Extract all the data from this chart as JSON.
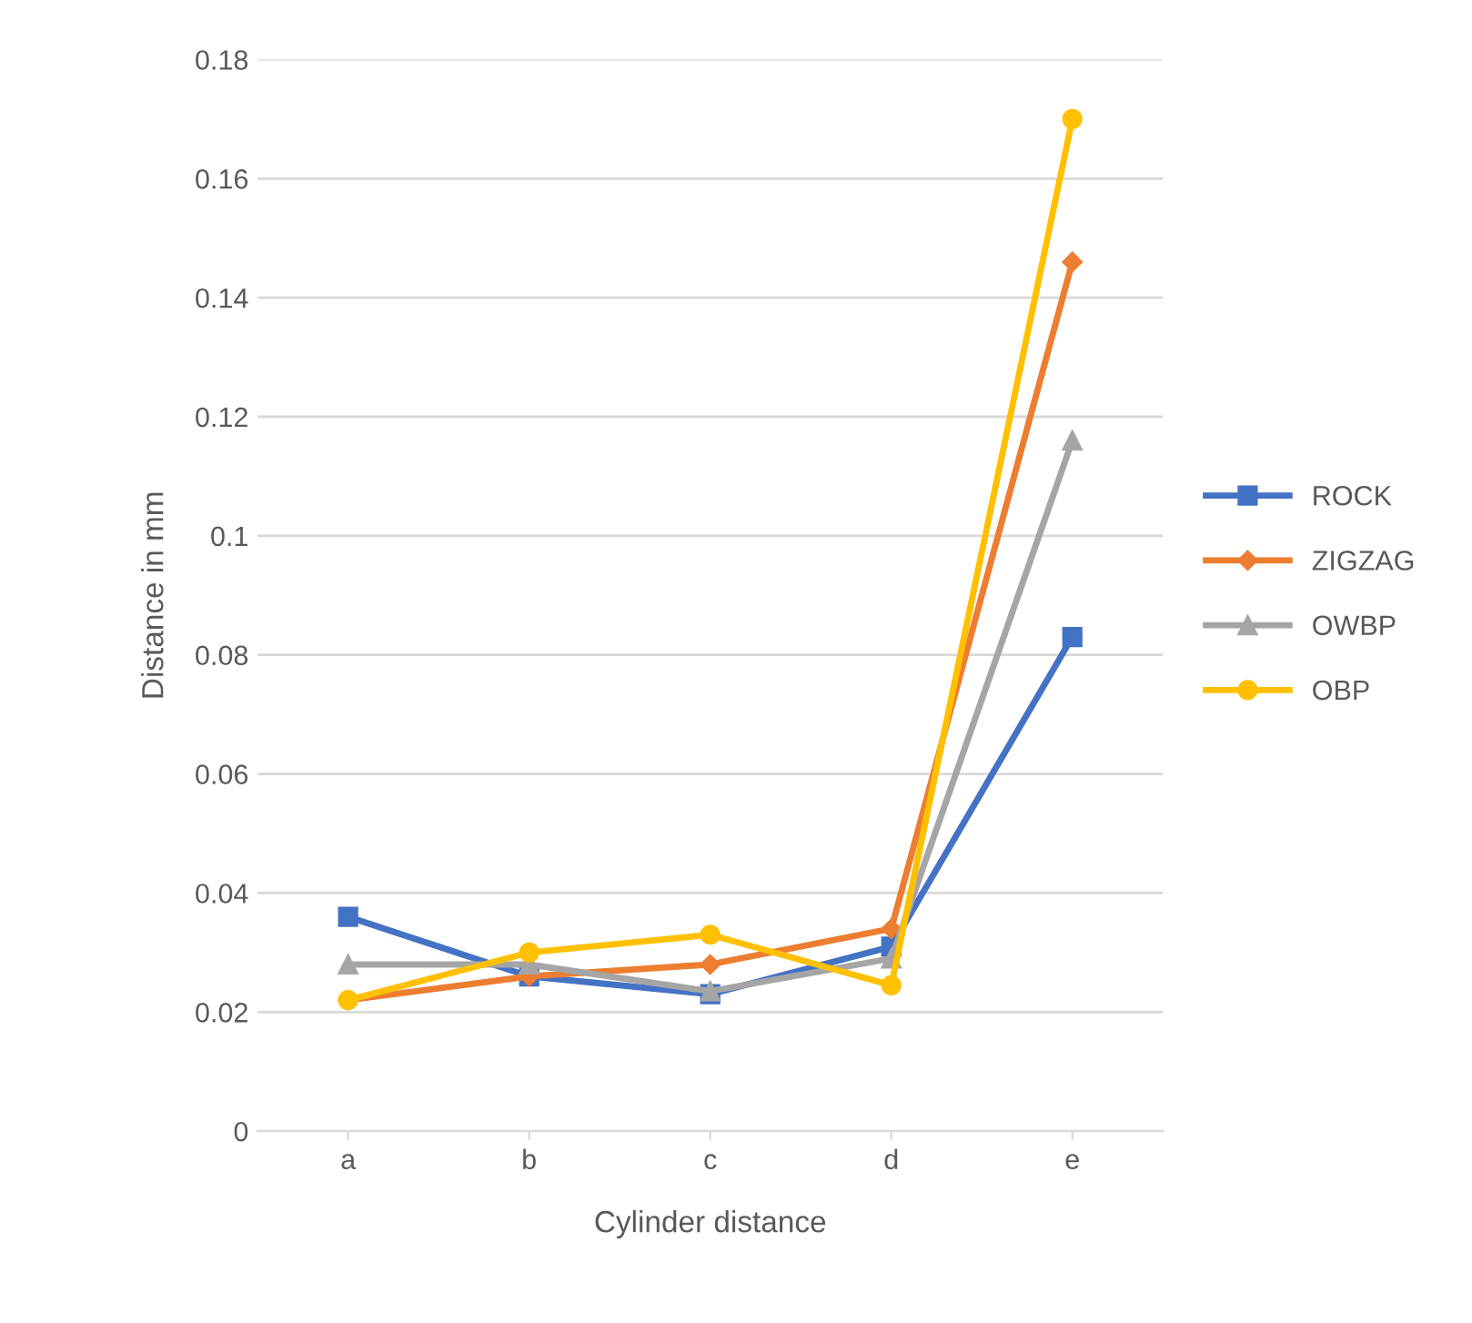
{
  "chart_data": {
    "type": "line",
    "xlabel": "Cylinder distance",
    "ylabel": "Distance in mm",
    "categories": [
      "a",
      "b",
      "c",
      "d",
      "e"
    ],
    "series": [
      {
        "name": "ROCK",
        "color": "#4472c4",
        "marker": "square",
        "values": [
          0.036,
          0.026,
          0.023,
          0.031,
          0.083
        ]
      },
      {
        "name": "ZIGZAG",
        "color": "#ed7d31",
        "marker": "diamond",
        "values": [
          0.022,
          0.026,
          0.028,
          0.034,
          0.146
        ]
      },
      {
        "name": "OWBP",
        "color": "#a5a5a5",
        "marker": "triangle",
        "values": [
          0.028,
          0.028,
          0.0235,
          0.029,
          0.116
        ]
      },
      {
        "name": "OBP",
        "color": "#ffc000",
        "marker": "circle",
        "values": [
          0.022,
          0.03,
          0.033,
          0.0245,
          0.17
        ]
      }
    ],
    "ylim": [
      0,
      0.18
    ],
    "yticks": [
      0,
      0.02,
      0.04,
      0.06,
      0.08,
      0.1,
      0.12,
      0.14,
      0.16,
      0.18
    ],
    "grid": "y",
    "legend": "right"
  }
}
